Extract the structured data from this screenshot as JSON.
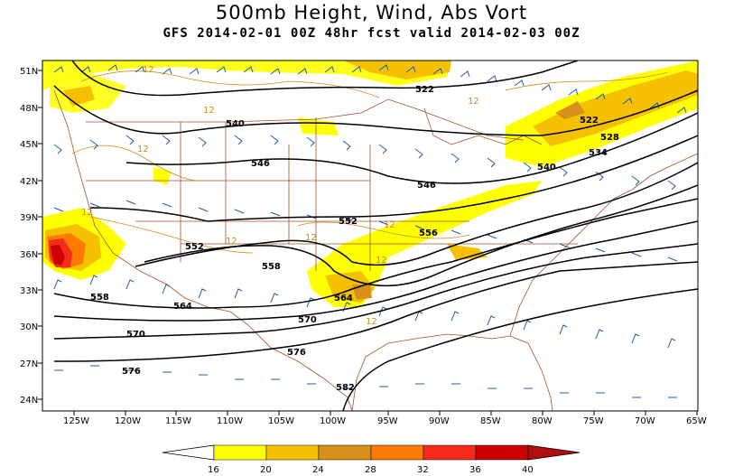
{
  "title": "500mb Height, Wind, Abs Vort",
  "subtitle": "GFS 2014-02-01 00Z 48hr fcst valid 2014-02-03 00Z",
  "lat_ticks": [
    "51N",
    "48N",
    "45N",
    "42N",
    "39N",
    "36N",
    "33N",
    "30N",
    "27N",
    "24N"
  ],
  "lon_ticks": [
    "125W",
    "120W",
    "115W",
    "110W",
    "105W",
    "100W",
    "95W",
    "90W",
    "85W",
    "80W",
    "75W",
    "70W",
    "65W"
  ],
  "height_labels": [
    "522",
    "522",
    "540",
    "546",
    "546",
    "540",
    "534",
    "528",
    "552",
    "552",
    "556",
    "558",
    "558",
    "564",
    "564",
    "570",
    "570",
    "576",
    "576",
    "582"
  ],
  "vort_labels": [
    "12",
    "12",
    "12",
    "12",
    "12",
    "12",
    "12",
    "12",
    "12",
    "12"
  ],
  "colorbar": {
    "ticks": [
      "16",
      "20",
      "24",
      "28",
      "32",
      "36",
      "40"
    ],
    "colors": [
      "#ffff00",
      "#ffe000",
      "#f5c000",
      "#d9901a",
      "#ff7a00",
      "#f42a1a",
      "#cc0000",
      "#b00f0f"
    ]
  }
}
